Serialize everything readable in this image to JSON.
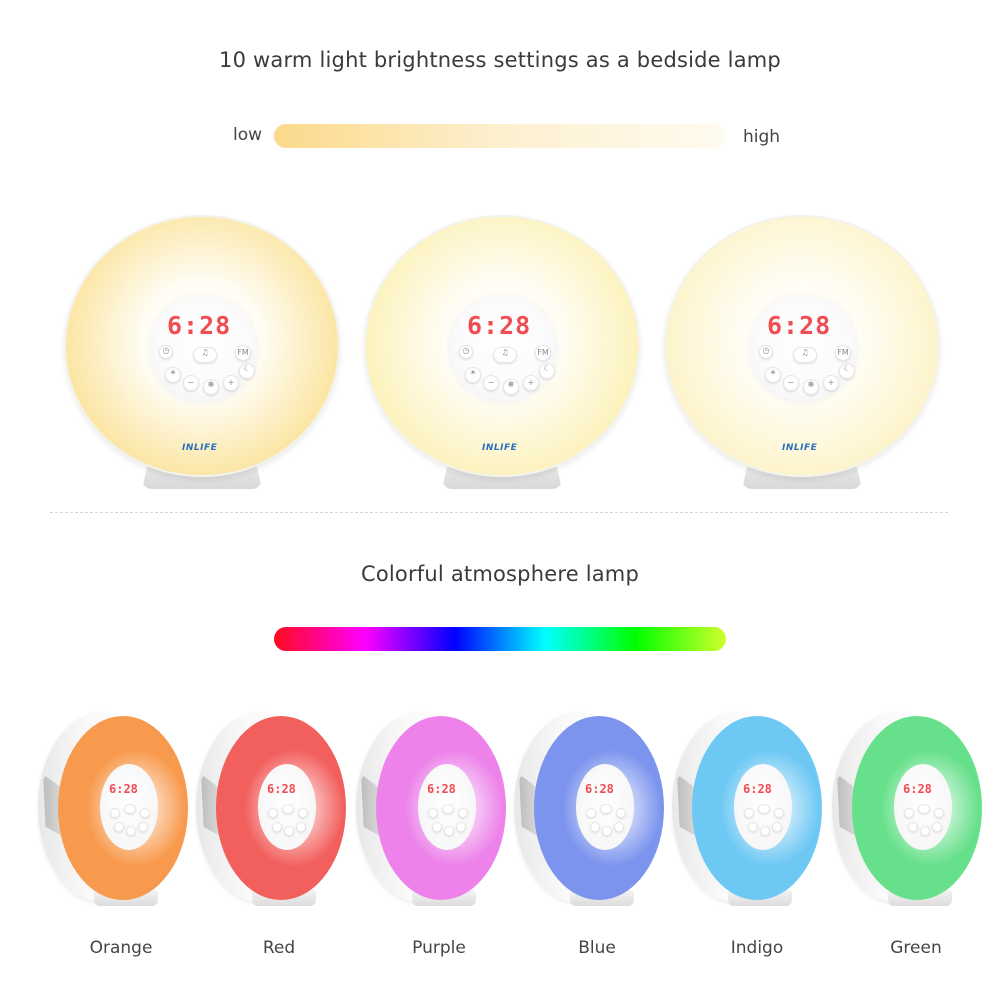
{
  "section1": {
    "heading": "10 warm light brightness settings as a bedside lamp",
    "bar_low_label": "low",
    "bar_high_label": "high",
    "gradient_colors": [
      "#fbd98a",
      "#fdf0cf",
      "#fefbf0"
    ]
  },
  "lamps": [
    {
      "clock": "6:28",
      "brand": "INLIFE",
      "glow": "#fbe39a",
      "btn_fm": "FM"
    },
    {
      "clock": "6:28",
      "brand": "INLIFE",
      "glow": "#fcf1b6",
      "btn_fm": "FM"
    },
    {
      "clock": "6:28",
      "brand": "INLIFE",
      "glow": "#fdf3c6",
      "btn_fm": "FM"
    }
  ],
  "section2": {
    "heading": "Colorful atmosphere lamp",
    "gradient_colors": [
      "#ff0a1e",
      "#ff00ff",
      "#0000ff",
      "#00ffff",
      "#00ff00",
      "#cfff2a"
    ]
  },
  "colors": [
    {
      "label": "Orange",
      "hex": "#f89a4e",
      "clock": "6:28"
    },
    {
      "label": "Red",
      "hex": "#f2605e",
      "clock": "6:28"
    },
    {
      "label": "Purple",
      "hex": "#ec82ea",
      "clock": "6:28"
    },
    {
      "label": "Blue",
      "hex": "#7c94ee",
      "clock": "6:28"
    },
    {
      "label": "Indigo",
      "hex": "#6ec8f4",
      "clock": "6:28"
    },
    {
      "label": "Green",
      "hex": "#66e08a",
      "clock": "6:28"
    }
  ]
}
